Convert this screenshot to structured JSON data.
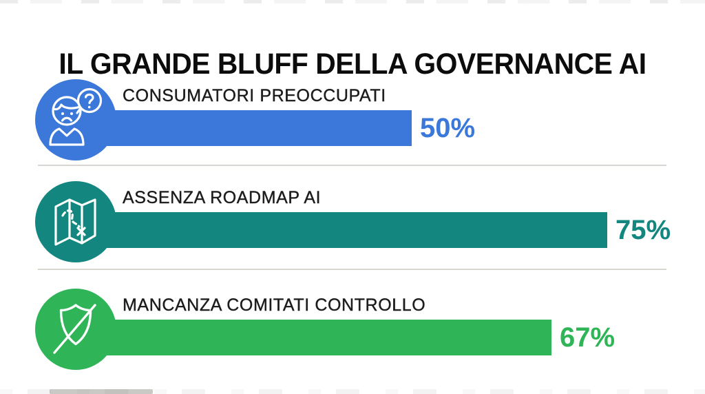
{
  "title": "IL GRANDE BLUFF DELLA GOVERNANCE AI",
  "rows": [
    {
      "label": "CONSUMATORI PREOCCUPATI",
      "value": 50,
      "value_label": "50%",
      "color": "#3b78d9",
      "icon": "worried-person-question-icon"
    },
    {
      "label": "ASSENZA ROADMAP AI",
      "value": 75,
      "value_label": "75%",
      "color": "#12867f",
      "icon": "folded-map-route-icon"
    },
    {
      "label": "MANCANZA COMITATI CONTROLLO",
      "value": 67,
      "value_label": "67%",
      "color": "#2fb457",
      "icon": "shield-slash-icon"
    }
  ],
  "chart_data": {
    "type": "bar",
    "orientation": "horizontal",
    "title": "IL GRANDE BLUFF DELLA GOVERNANCE AI",
    "categories": [
      "CONSUMATORI PREOCCUPATI",
      "ASSENZA ROADMAP AI",
      "MANCANZA COMITATI CONTROLLO"
    ],
    "values": [
      50,
      75,
      67
    ],
    "value_labels": [
      "50%",
      "75%",
      "67%"
    ],
    "colors": [
      "#3b78d9",
      "#12867f",
      "#2fb457"
    ],
    "xlim": [
      0,
      100
    ],
    "grid": false,
    "legend": false
  }
}
